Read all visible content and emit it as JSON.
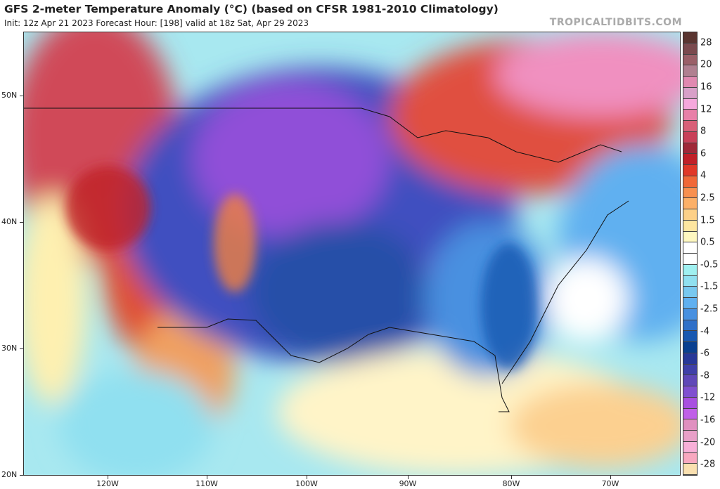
{
  "header": {
    "title": "GFS 2-meter Temperature Anomaly (°C) (based on CFSR 1981-2010 Climatology)",
    "subtitle": "Init: 12z Apr 21 2023   Forecast Hour: [198]   valid at 18z Sat, Apr 29 2023",
    "brand": "TROPICALTIDBITS.COM"
  },
  "axes": {
    "latitudes": [
      "50N",
      "40N",
      "30N",
      "20N"
    ],
    "longitudes": [
      "120W",
      "110W",
      "100W",
      "90W",
      "80W",
      "70W"
    ]
  },
  "colorbar": {
    "labels": [
      "28",
      "20",
      "16",
      "12",
      "8",
      "6",
      "4",
      "2.5",
      "1.5",
      "0.5",
      "-0.5",
      "-1.5",
      "-2.5",
      "-4",
      "-6",
      "-8",
      "-12",
      "-16",
      "-20",
      "-28"
    ],
    "colors": [
      "#5a3530",
      "#7a4a4e",
      "#9a6068",
      "#b08090",
      "#e089b0",
      "#d8a0c8",
      "#f5a8dc",
      "#e880a8",
      "#d86078",
      "#c84058",
      "#a02838",
      "#c02028",
      "#e03828",
      "#f06838",
      "#f89050",
      "#fcb068",
      "#fdd088",
      "#fee6a0",
      "#fef8c0",
      "#ffffff",
      "#ffffff",
      "#a0f0f0",
      "#90e0f0",
      "#78c8f0",
      "#60b0f0",
      "#4890e0",
      "#3070c8",
      "#1858b0",
      "#0a4090",
      "#283898",
      "#4040a8",
      "#6048b8",
      "#8050d0",
      "#a850e0",
      "#c060e8",
      "#e090c0",
      "#e8a0c8",
      "#f8b0d8",
      "#f8a8c0",
      "#fae0b0"
    ]
  }
}
